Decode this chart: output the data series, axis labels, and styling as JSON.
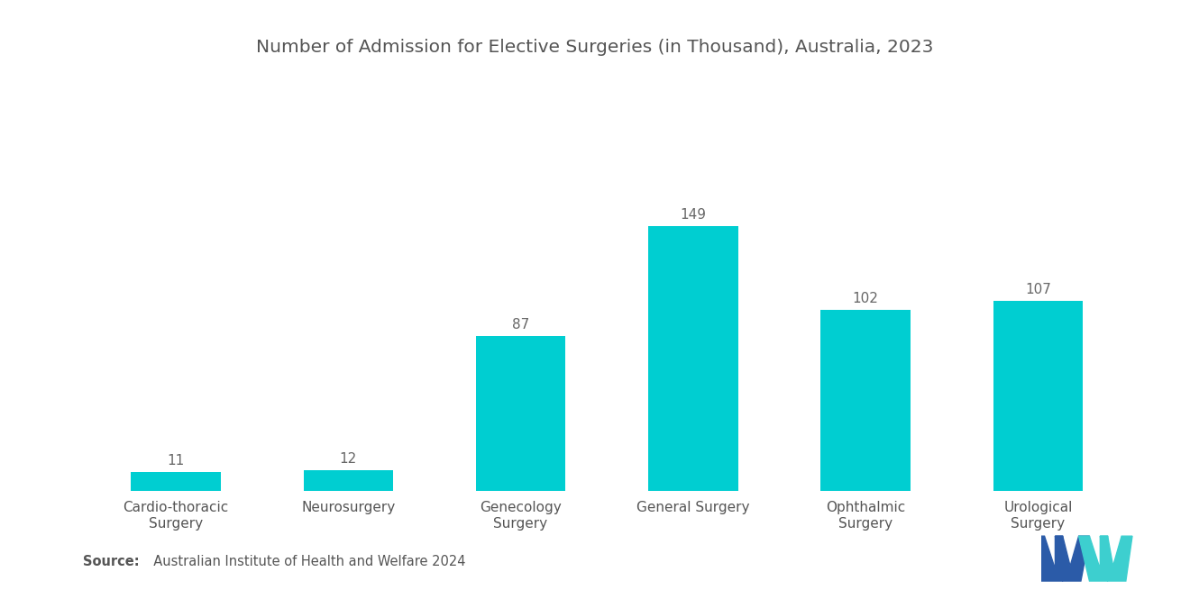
{
  "title": "Number of Admission for Elective Surgeries (in Thousand), Australia, 2023",
  "categories": [
    "Cardio-thoracic\nSurgery",
    "Neurosurgery",
    "Genecology\nSurgery",
    "General Surgery",
    "Ophthalmic\nSurgery",
    "Urological\nSurgery"
  ],
  "values": [
    11,
    12,
    87,
    149,
    102,
    107
  ],
  "bar_color": "#00CED1",
  "value_label_color": "#666666",
  "title_color": "#555555",
  "xlabel_color": "#555555",
  "background_color": "#ffffff",
  "source_bold": "Source:",
  "source_rest": "  Australian Institute of Health and Welfare 2024",
  "ylim": [
    0,
    175
  ],
  "title_fontsize": 14.5,
  "label_fontsize": 11,
  "value_fontsize": 11,
  "source_fontsize": 10.5,
  "logo_blue": "#2B5BA8",
  "logo_teal": "#3DCFCF"
}
